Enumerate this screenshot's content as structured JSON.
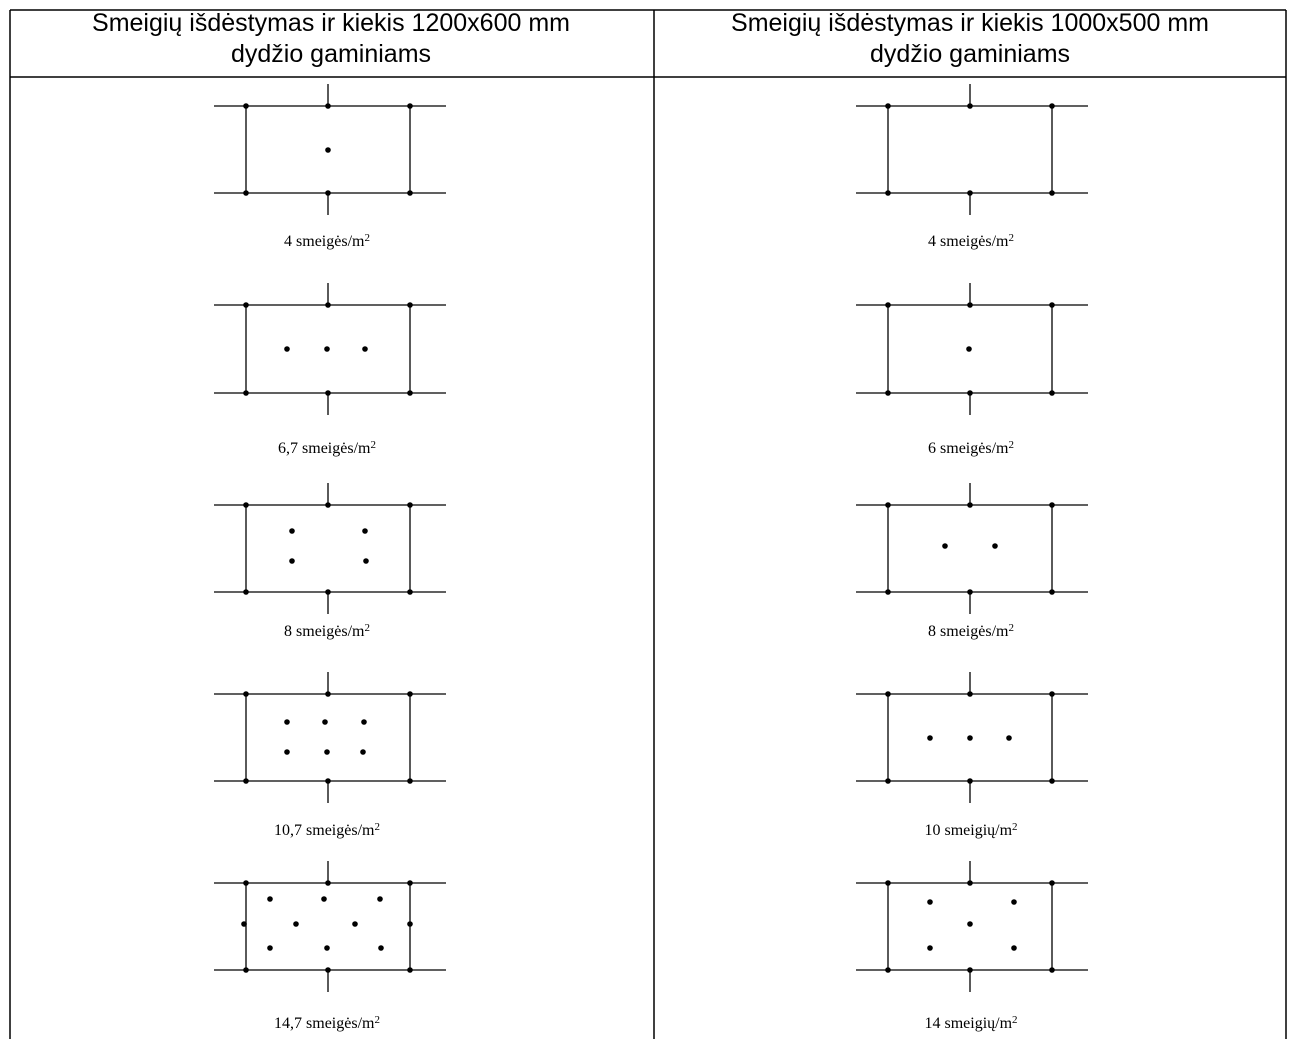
{
  "headers": [
    {
      "line1": "Smeigių išdėstymas ir kiekis 1200x600 mm",
      "line2": "dydžio gaminiams"
    },
    {
      "line1": "Smeigių išdėstymas ir kiekis 1000x500 mm",
      "line2": "dydžio gaminiams"
    }
  ],
  "left_diagrams": [
    {
      "value": "4 smeigės/m",
      "exp": "2",
      "inner_dots": 1
    },
    {
      "value": "6,7 smeigės/m",
      "exp": "2",
      "inner_dots": 3
    },
    {
      "value": "8 smeigės/m",
      "exp": "2",
      "inner_dots": 4
    },
    {
      "value": "10,7 smeigės/m",
      "exp": "2",
      "inner_dots": 6
    },
    {
      "value": "14,7 smeigės/m",
      "exp": "2",
      "inner_dots": 7,
      "side_dots": 2
    }
  ],
  "right_diagrams": [
    {
      "value": "4 smeigės/m",
      "exp": "2",
      "inner_dots": 0
    },
    {
      "value": "6 smeigės/m",
      "exp": "2",
      "inner_dots": 1
    },
    {
      "value": "8 smeigės/m",
      "exp": "2",
      "inner_dots": 2
    },
    {
      "value": "10 smeigių/m",
      "exp": "2",
      "inner_dots": 3
    },
    {
      "value": "14 smeigių/m",
      "exp": "2",
      "inner_dots": 5
    }
  ]
}
